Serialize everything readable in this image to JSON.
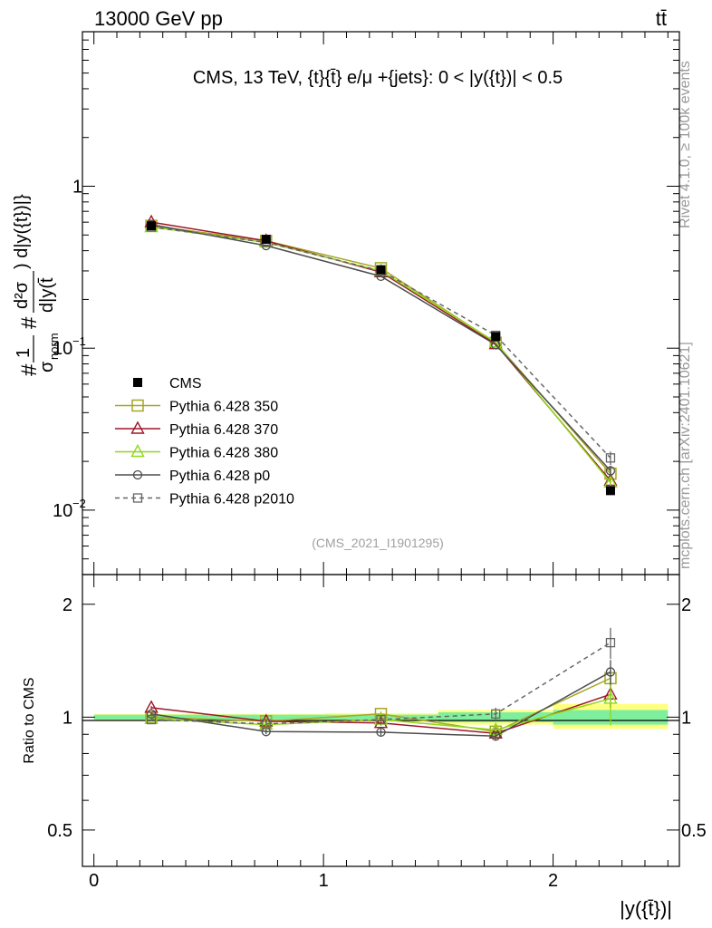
{
  "header": {
    "energy_label": "13000 GeV pp",
    "process_label": "tt̄"
  },
  "side_labels": {
    "rivet": "Rivet 4.1.0, ≥ 100k events",
    "mcplots": "mcplots.cern.ch [arXiv:2401.10621]"
  },
  "colors": {
    "CMS": "#000000",
    "Pythia 6.428 350": "#a6a626",
    "Pythia 6.428 370": "#a0172a",
    "Pythia 6.428 380": "#8fd81a",
    "Pythia 6.428 p0": "#4d4d4d",
    "Pythia 6.428 p2010": "#666666",
    "band_inner": "#7fef9e",
    "band_outer": "#ffff80"
  },
  "chart_data": [
    {
      "type": "scatter",
      "panel": "main",
      "title": "CMS, 13 TeV, {t}{t̄} e/μ +{jets}: 0 < |y({t})| < 0.5",
      "ylabel": "#1/σ_norm #d²σ/d|y({t})| d|y(t̄)",
      "ylabel_parts": {
        "prefix": "#",
        "one": "1",
        "sigma": "σ",
        "norm": "norm",
        "hash": "#",
        "num": "d²σ",
        "num_tail": ") d|y({t})|}",
        "den": "d|y(t̄"
      },
      "yscale": "log",
      "ylim": [
        0.004,
        9
      ],
      "xlim": [
        -0.05,
        2.55
      ],
      "yticks": [
        {
          "value": 0.01,
          "base": "10",
          "exp": "−2"
        },
        {
          "value": 0.1,
          "base": "10",
          "exp": "−1"
        },
        {
          "value": 1,
          "base": "1",
          "exp": ""
        }
      ],
      "watermark": "(CMS_2021_I1901295)",
      "x": [
        0.25,
        0.75,
        1.25,
        1.75,
        2.25
      ],
      "series": [
        {
          "name": "CMS",
          "marker": "filled-square",
          "values": [
            0.57,
            0.47,
            0.305,
            0.118,
            0.0132
          ],
          "err": [
            0.01,
            0.008,
            0.006,
            0.004,
            0.0006
          ]
        },
        {
          "name": "Pythia 6.428 350",
          "marker": "open-square",
          "line": "solid",
          "values": [
            0.57,
            0.46,
            0.312,
            0.108,
            0.0168
          ],
          "err": [
            0.004,
            0.004,
            0.003,
            0.002,
            0.001
          ]
        },
        {
          "name": "Pythia 6.428 370",
          "marker": "open-triangle",
          "line": "solid",
          "values": [
            0.6,
            0.46,
            0.295,
            0.106,
            0.0152
          ],
          "err": [
            0.004,
            0.004,
            0.003,
            0.002,
            0.0011
          ]
        },
        {
          "name": "Pythia 6.428 380",
          "marker": "open-triangle",
          "line": "solid",
          "values": [
            0.56,
            0.45,
            0.3,
            0.109,
            0.0148
          ],
          "err": [
            0.004,
            0.004,
            0.003,
            0.002,
            0.0022
          ]
        },
        {
          "name": "Pythia 6.428 p0",
          "marker": "open-circle",
          "line": "solid",
          "values": [
            0.58,
            0.43,
            0.278,
            0.105,
            0.0175
          ],
          "err": [
            0.004,
            0.004,
            0.003,
            0.002,
            0.0013
          ]
        },
        {
          "name": "Pythia 6.428 p2010",
          "marker": "open-square-small",
          "line": "dashed",
          "values": [
            0.56,
            0.45,
            0.3,
            0.12,
            0.021
          ],
          "err": [
            0.004,
            0.004,
            0.003,
            0.002,
            0.002
          ]
        }
      ]
    },
    {
      "type": "line",
      "panel": "ratio",
      "xlabel": "|y({t̄})|",
      "ylabel": "Ratio to CMS",
      "yscale": "log",
      "ylim": [
        0.4,
        2.4
      ],
      "xlim": [
        -0.05,
        2.55
      ],
      "xticks": [
        0,
        1,
        2
      ],
      "yticks": [
        0.5,
        1,
        2
      ],
      "bands": [
        {
          "x_from": 0,
          "x_to": 0.5,
          "inner": [
            0.985,
            1.015
          ],
          "outer": [
            0.98,
            1.02
          ]
        },
        {
          "x_from": 0.5,
          "x_to": 1.0,
          "inner": [
            0.985,
            1.015
          ],
          "outer": [
            0.98,
            1.02
          ]
        },
        {
          "x_from": 1.0,
          "x_to": 1.5,
          "inner": [
            0.985,
            1.015
          ],
          "outer": [
            0.975,
            1.025
          ]
        },
        {
          "x_from": 1.5,
          "x_to": 2.0,
          "inner": [
            0.97,
            1.03
          ],
          "outer": [
            0.955,
            1.045
          ]
        },
        {
          "x_from": 2.0,
          "x_to": 2.5,
          "inner": [
            0.955,
            1.045
          ],
          "outer": [
            0.93,
            1.085
          ]
        }
      ],
      "x": [
        0.25,
        0.75,
        1.25,
        1.75,
        2.25
      ],
      "series": [
        {
          "name": "Pythia 6.428 350",
          "values": [
            1.0,
            0.975,
            1.02,
            0.915,
            1.27
          ],
          "err": [
            0.01,
            0.01,
            0.015,
            0.025,
            0.08
          ]
        },
        {
          "name": "Pythia 6.428 370",
          "values": [
            1.06,
            0.975,
            0.965,
            0.905,
            1.15
          ],
          "err": [
            0.01,
            0.01,
            0.015,
            0.03,
            0.09
          ]
        },
        {
          "name": "Pythia 6.428 380",
          "values": [
            0.99,
            0.955,
            0.985,
            0.925,
            1.12
          ],
          "err": [
            0.01,
            0.01,
            0.015,
            0.03,
            0.17
          ]
        },
        {
          "name": "Pythia 6.428 p0",
          "values": [
            1.02,
            0.915,
            0.912,
            0.89,
            1.32
          ],
          "err": [
            0.01,
            0.015,
            0.02,
            0.025,
            0.1
          ]
        },
        {
          "name": "Pythia 6.428 p2010",
          "values": [
            0.985,
            0.96,
            0.985,
            1.02,
            1.58
          ],
          "err": [
            0.01,
            0.01,
            0.015,
            0.04,
            0.15
          ]
        }
      ]
    }
  ]
}
